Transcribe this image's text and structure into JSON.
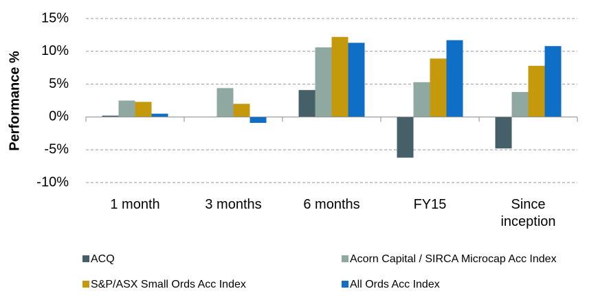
{
  "chart_data": {
    "type": "bar",
    "y_label": "Performance %",
    "categories": [
      "1 month",
      "3 months",
      "6 months",
      "FY15",
      "Since inception"
    ],
    "series": [
      {
        "name": "ACQ",
        "color": "#46606a",
        "values": [
          0.2,
          0,
          4.1,
          -6.2,
          -4.8
        ]
      },
      {
        "name": "Acorn Capital / SIRCA Microcap Acc Index",
        "color": "#8fa9a2",
        "values": [
          2.5,
          4.4,
          10.6,
          5.3,
          3.8
        ]
      },
      {
        "name": "S&P/ASX Small Ords Acc Index",
        "color": "#c49a0c",
        "values": [
          2.3,
          2.0,
          12.2,
          8.9,
          7.8
        ]
      },
      {
        "name": "All Ords Acc Index",
        "color": "#0f6fc6",
        "values": [
          0.5,
          -0.9,
          11.3,
          11.7,
          10.8
        ]
      }
    ],
    "ylim": [
      -10,
      15
    ],
    "yticks": [
      {
        "value": -10,
        "label": "-10%"
      },
      {
        "value": -5,
        "label": "-5%"
      },
      {
        "value": 0,
        "label": "0%"
      },
      {
        "value": 5,
        "label": "5%"
      },
      {
        "value": 10,
        "label": "10%"
      },
      {
        "value": 15,
        "label": "15%"
      }
    ],
    "grid": true
  }
}
